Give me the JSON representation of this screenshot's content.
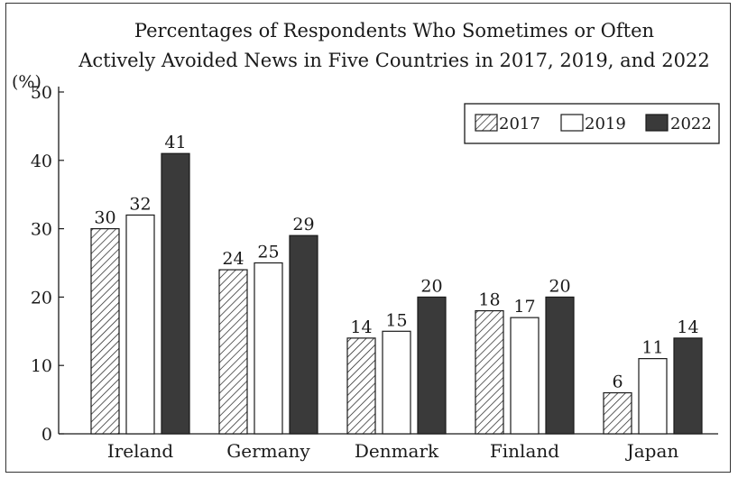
{
  "chart_data": {
    "type": "bar",
    "title_line1": "Percentages of Respondents Who Sometimes or Often",
    "title_line2": "Actively Avoided News in Five Countries in 2017, 2019, and 2022",
    "ylabel": "(%)",
    "xlabel": "",
    "ylim": [
      0,
      50
    ],
    "yticks": [
      0,
      10,
      20,
      30,
      40,
      50
    ],
    "categories": [
      "Ireland",
      "Germany",
      "Denmark",
      "Finland",
      "Japan"
    ],
    "series": [
      {
        "name": "2017",
        "style": "hatched",
        "values": [
          30,
          24,
          14,
          18,
          6
        ]
      },
      {
        "name": "2019",
        "style": "white",
        "values": [
          32,
          25,
          15,
          17,
          11
        ]
      },
      {
        "name": "2022",
        "style": "dark",
        "values": [
          41,
          29,
          20,
          20,
          14
        ]
      }
    ],
    "legend_position": "top-right",
    "colors": {
      "dark": "#3a3a3a",
      "outline": "#1a1a1a",
      "white": "#ffffff"
    }
  }
}
